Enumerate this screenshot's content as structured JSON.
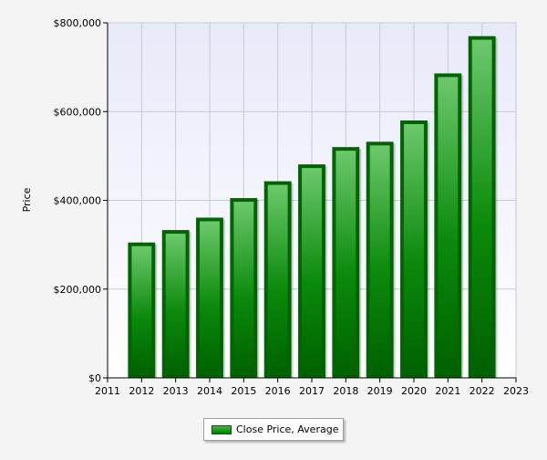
{
  "chart_data": {
    "type": "bar",
    "ylabel": "Price",
    "xlabel": "",
    "title": "",
    "x_ticks": [
      "2011",
      "2012",
      "2013",
      "2014",
      "2015",
      "2016",
      "2017",
      "2018",
      "2019",
      "2020",
      "2021",
      "2022",
      "2023"
    ],
    "categories": [
      "2012",
      "2013",
      "2014",
      "2015",
      "2016",
      "2017",
      "2018",
      "2019",
      "2020",
      "2021",
      "2022"
    ],
    "series": [
      {
        "name": "Close Price, Average",
        "values": [
          305000,
          333000,
          361000,
          405000,
          443000,
          481000,
          520000,
          532000,
          580000,
          686000,
          770000
        ]
      }
    ],
    "ylim": [
      0,
      800000
    ],
    "xlim": [
      2011,
      2023
    ],
    "y_ticks": [
      0,
      200000,
      400000,
      600000,
      800000
    ],
    "y_tick_labels": [
      "$0",
      "$200,000",
      "$400,000",
      "$600,000",
      "$800,000"
    ],
    "grid": true,
    "legend_position": "bottom-center",
    "colors": {
      "bar_fill": "#008000",
      "bar_highlight": "#5fc05f",
      "bar_border": "#006400",
      "plot_background": "#eef0fb",
      "grid": "#c8c8d8"
    }
  }
}
